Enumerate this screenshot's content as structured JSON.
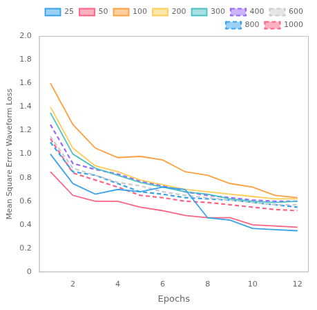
{
  "chart_data": {
    "type": "line",
    "x_label": "Epochs",
    "y_label": "Mean Square Error Waveform Loss",
    "x": [
      1,
      2,
      3,
      4,
      5,
      6,
      7,
      8,
      9,
      10,
      11,
      12
    ],
    "series": [
      {
        "name": "25",
        "line_style": "solid",
        "values": [
          1.0,
          0.75,
          0.66,
          0.7,
          0.68,
          0.72,
          0.7,
          0.46,
          0.44,
          0.37,
          0.36,
          0.35
        ]
      },
      {
        "name": "50",
        "line_style": "solid",
        "values": [
          0.85,
          0.65,
          0.6,
          0.6,
          0.55,
          0.52,
          0.48,
          0.46,
          0.46,
          0.4,
          0.39,
          0.38
        ]
      },
      {
        "name": "100",
        "line_style": "solid",
        "values": [
          1.6,
          1.25,
          1.05,
          0.97,
          0.98,
          0.95,
          0.85,
          0.82,
          0.75,
          0.72,
          0.65,
          0.63
        ]
      },
      {
        "name": "200",
        "line_style": "solid",
        "values": [
          1.4,
          1.05,
          0.9,
          0.85,
          0.78,
          0.74,
          0.7,
          0.68,
          0.66,
          0.64,
          0.62,
          0.62
        ]
      },
      {
        "name": "300",
        "line_style": "solid",
        "values": [
          1.35,
          1.0,
          0.88,
          0.82,
          0.76,
          0.72,
          0.68,
          0.66,
          0.62,
          0.6,
          0.59,
          0.6
        ]
      },
      {
        "name": "400",
        "line_style": "dashed",
        "values": [
          1.25,
          0.92,
          0.87,
          0.83,
          0.77,
          0.73,
          0.68,
          0.65,
          0.63,
          0.61,
          0.6,
          0.6
        ]
      },
      {
        "name": "600",
        "line_style": "dashed",
        "values": [
          1.15,
          0.88,
          0.82,
          0.76,
          0.73,
          0.68,
          0.65,
          0.63,
          0.61,
          0.59,
          0.57,
          0.57
        ]
      },
      {
        "name": "800",
        "line_style": "dashed",
        "values": [
          1.1,
          0.85,
          0.82,
          0.75,
          0.68,
          0.66,
          0.63,
          0.62,
          0.61,
          0.59,
          0.57,
          0.55
        ]
      },
      {
        "name": "1000",
        "line_style": "dashed",
        "values": [
          1.13,
          0.84,
          0.78,
          0.72,
          0.65,
          0.63,
          0.6,
          0.59,
          0.57,
          0.55,
          0.53,
          0.52
        ]
      }
    ],
    "xlim": [
      0.5,
      12.5
    ],
    "xticks": [
      2,
      4,
      6,
      8,
      10,
      12
    ],
    "ylim": [
      0,
      2.0
    ],
    "yticks": [
      0,
      0.2,
      0.4,
      0.6,
      0.8,
      {
        "value": 1.0,
        "label": "1.0"
      },
      1.2,
      1.4,
      1.6,
      1.8,
      {
        "value": 2.0,
        "label": "2.0"
      }
    ],
    "grid": false,
    "legend": "upper right"
  }
}
